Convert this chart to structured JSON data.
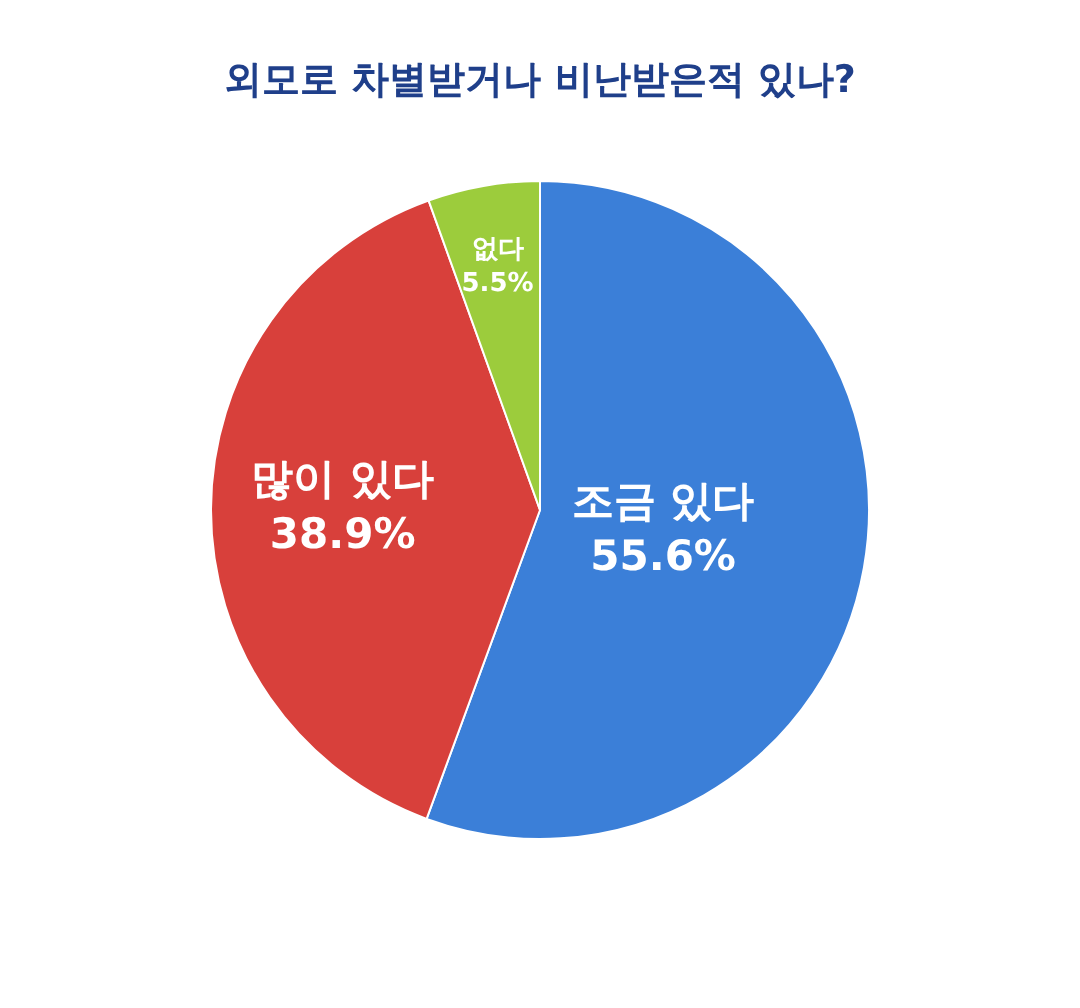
{
  "chart_data": {
    "type": "pie",
    "title": "외모로 차별받거나 비난받은적 있나?",
    "categories": [
      "조금 있다",
      "많이 있다",
      "없다"
    ],
    "values": [
      55.6,
      38.9,
      5.5
    ],
    "value_labels": [
      "55.6%",
      "38.9%",
      "5.5%"
    ],
    "colors": [
      "#3b7fd8",
      "#d8403b",
      "#9ccc3c"
    ],
    "legend": false
  }
}
